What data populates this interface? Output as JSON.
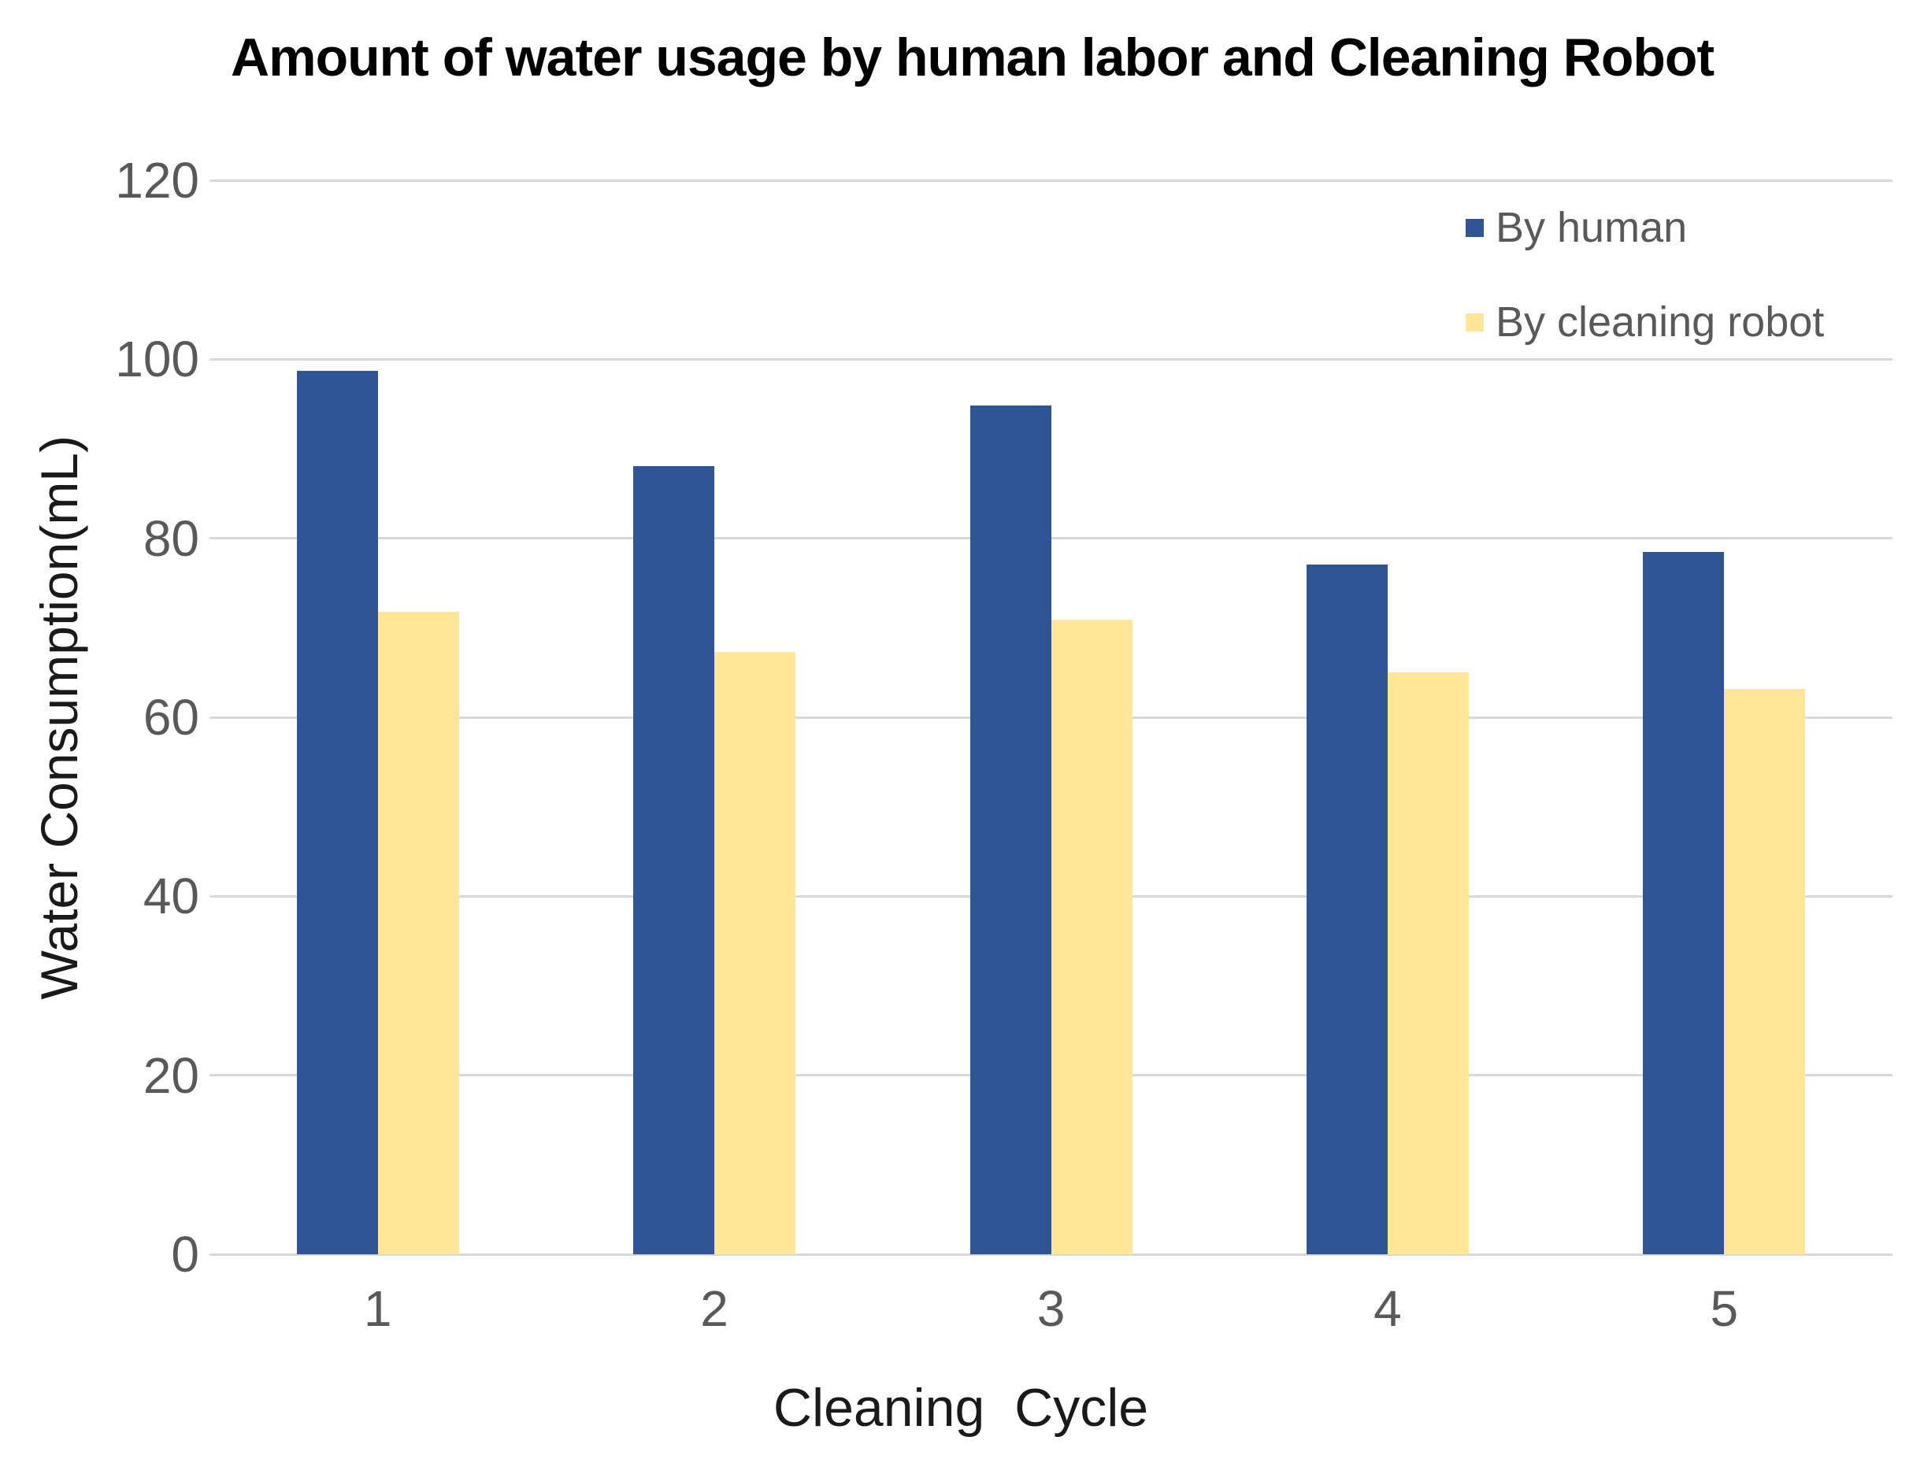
{
  "chart_data": {
    "type": "bar",
    "title": "Amount of water usage by human labor and Cleaning Robot",
    "xlabel": "Cleaning  Cycle",
    "ylabel": "Water Consumption(mL)",
    "categories": [
      "1",
      "2",
      "3",
      "4",
      "5"
    ],
    "series": [
      {
        "name": "By human",
        "color": "#2F5597",
        "values": [
          98.7,
          88.1,
          94.8,
          77.1,
          78.5
        ]
      },
      {
        "name": "By cleaning robot",
        "color": "#FFE699",
        "values": [
          71.8,
          67.3,
          70.9,
          65.0,
          63.2
        ]
      }
    ],
    "ylim": [
      0,
      120
    ],
    "yticks": [
      0,
      20,
      40,
      60,
      80,
      100,
      120
    ],
    "grid": true,
    "legend_position": "top-right"
  },
  "colors": {
    "background": "#FFFFFF",
    "gridline": "#D9D9D9",
    "tick_text": "#595959",
    "axis_title_text": "#1a1a1a",
    "title_text": "#000000",
    "series_human": "#2F5597",
    "series_robot": "#FFE699"
  }
}
